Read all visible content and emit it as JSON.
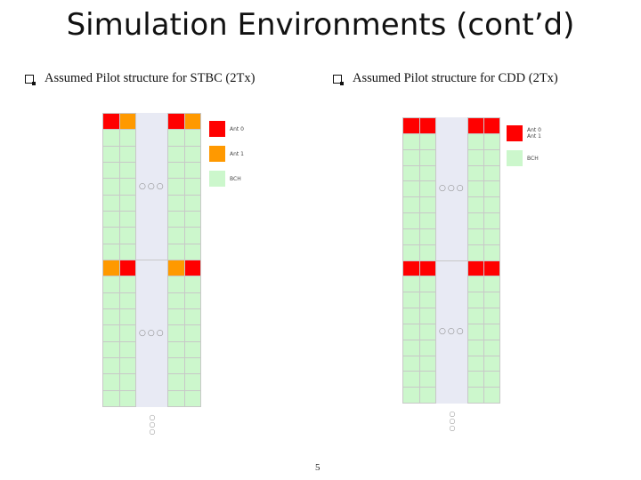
{
  "slide": {
    "title": "Simulation Environments (cont’d)",
    "page_number": "5"
  },
  "left": {
    "heading": "Assumed Pilot structure for STBC (2Tx)",
    "legend": [
      {
        "label": "Ant 0",
        "color": "#ff0000"
      },
      {
        "label": "Ant 1",
        "color": "#ff9900"
      },
      {
        "label": "BCH",
        "color": "#ccf7cc"
      }
    ]
  },
  "right": {
    "heading": "Assumed Pilot structure for CDD (2Tx)",
    "legend": [
      {
        "label": "Ant 0",
        "label2": "Ant 1",
        "color": "#ff0000"
      },
      {
        "label": "BCH",
        "color": "#ccf7cc"
      }
    ]
  },
  "colors": {
    "ant0": "#ff0000",
    "ant1": "#ff9900",
    "bch": "#ccf7cc",
    "gap": "#e8eaf4"
  },
  "ellipsis": {
    "horizontal": "○○○",
    "vertical": "○\n○\n○"
  }
}
